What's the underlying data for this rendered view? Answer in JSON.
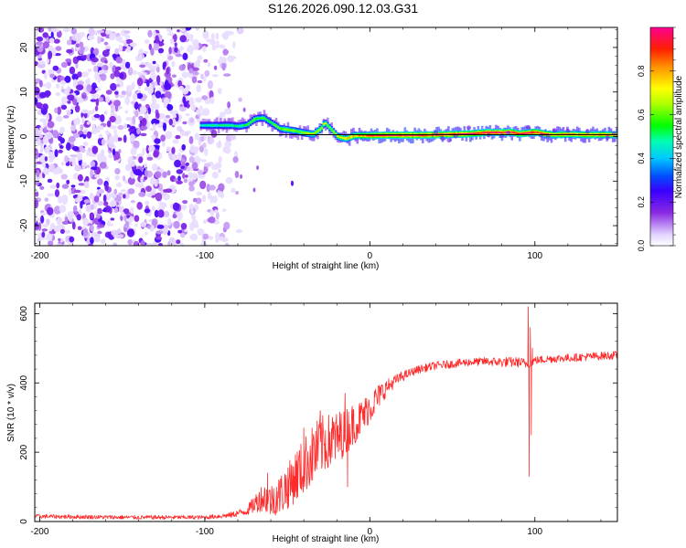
{
  "figure_title": "S126.2026.090.12.03.G31",
  "colors": {
    "line": "#ff2a2a",
    "axis": "#000000",
    "background": "#ffffff"
  },
  "chart_data": [
    {
      "type": "heatmap",
      "title": "S126.2026.090.12.03.G31",
      "xlabel": "Height of straight line (km)",
      "ylabel": "Frequency (Hz)",
      "xlim": [
        -203,
        150
      ],
      "ylim": [
        -24.5,
        24.5
      ],
      "xticks": [
        -200,
        -100,
        0,
        100
      ],
      "yticks": [
        -20,
        -10,
        0,
        10,
        20
      ],
      "x_tick_labels": [
        "-200",
        "-100",
        "0",
        "100"
      ],
      "y_tick_labels": [
        "-20",
        "-10",
        "0",
        "10",
        "20"
      ],
      "ridge": {
        "name": "dominant frequency track",
        "x": [
          -103,
          -95,
          -85,
          -80,
          -75,
          -70,
          -65,
          -60,
          -55,
          -50,
          -45,
          -40,
          -35,
          -30,
          -28,
          -25,
          -20,
          -15,
          -10,
          -5,
          0,
          10,
          20,
          30,
          40,
          50,
          60,
          70,
          80,
          85,
          90,
          95,
          100,
          105,
          110,
          120,
          130,
          140,
          150
        ],
        "y": [
          2.5,
          2.5,
          2.5,
          2.3,
          2.6,
          4.0,
          4.2,
          3.0,
          1.8,
          1.5,
          1.2,
          0.8,
          0.5,
          1.8,
          3.2,
          2.0,
          0.0,
          -0.5,
          0.2,
          0.2,
          0.2,
          0.3,
          0.3,
          0.3,
          0.4,
          0.5,
          0.6,
          0.9,
          0.9,
          1.0,
          0.6,
          0.8,
          1.0,
          0.6,
          0.4,
          0.5,
          0.4,
          0.4,
          0.4
        ],
        "amplitude": [
          0.45,
          0.5,
          0.5,
          0.5,
          0.55,
          0.6,
          0.55,
          0.55,
          0.6,
          0.65,
          0.6,
          0.65,
          0.7,
          0.65,
          0.7,
          0.6,
          0.7,
          0.75,
          0.8,
          0.85,
          0.9,
          0.95,
          0.95,
          0.95,
          0.95,
          0.95,
          0.95,
          0.95,
          0.95,
          0.95,
          0.9,
          0.95,
          0.95,
          0.9,
          0.85,
          0.85,
          0.85,
          0.85,
          0.85
        ]
      },
      "noise_region": {
        "x_range": [
          -203,
          -78
        ],
        "amplitude_range": [
          0.0,
          0.25
        ],
        "description": "scattered low-amplitude noise"
      },
      "reference_line": {
        "y": 0.4,
        "x_range": [
          -103,
          150
        ],
        "color": "#000000"
      },
      "colorbar": {
        "label": "Normalized spectral amplitude",
        "range": [
          0.0,
          1.0
        ],
        "ticks": [
          0.0,
          0.2,
          0.4,
          0.6,
          0.8
        ],
        "tick_labels": [
          "0.0",
          "0.2",
          "0.4",
          "0.6",
          "0.8"
        ],
        "colormap": [
          {
            "v": 0.0,
            "color": "#ffffff"
          },
          {
            "v": 0.05,
            "color": "#e4d4ff"
          },
          {
            "v": 0.15,
            "color": "#8a2be2"
          },
          {
            "v": 0.25,
            "color": "#3a00ff"
          },
          {
            "v": 0.32,
            "color": "#0050ff"
          },
          {
            "v": 0.4,
            "color": "#00c8ff"
          },
          {
            "v": 0.48,
            "color": "#00ffb0"
          },
          {
            "v": 0.55,
            "color": "#00ff00"
          },
          {
            "v": 0.65,
            "color": "#b0ff00"
          },
          {
            "v": 0.72,
            "color": "#ffff00"
          },
          {
            "v": 0.82,
            "color": "#ff9000"
          },
          {
            "v": 0.9,
            "color": "#ff2000"
          },
          {
            "v": 1.0,
            "color": "#ff0090"
          }
        ]
      }
    },
    {
      "type": "line",
      "title": "",
      "xlabel": "Height of straight line (km)",
      "ylabel": "SNR (10 * v/v)",
      "xlim": [
        -203,
        150
      ],
      "ylim": [
        0,
        630
      ],
      "xticks": [
        -200,
        -100,
        0,
        100
      ],
      "yticks": [
        0,
        200,
        400,
        600
      ],
      "x_tick_labels": [
        "-200",
        "-100",
        "0",
        "100"
      ],
      "y_tick_labels": [
        "0",
        "200",
        "400",
        "600"
      ],
      "series": [
        {
          "name": "SNR",
          "color": "#ff2a2a",
          "trend_x": [
            -203,
            -150,
            -100,
            -85,
            -75,
            -70,
            -65,
            -60,
            -55,
            -50,
            -45,
            -40,
            -35,
            -30,
            -25,
            -20,
            -15,
            -10,
            -5,
            0,
            5,
            10,
            15,
            20,
            25,
            30,
            40,
            50,
            60,
            70,
            80,
            90,
            95,
            100,
            110,
            120,
            130,
            140,
            150
          ],
          "trend_y": [
            15,
            12,
            12,
            18,
            30,
            50,
            70,
            60,
            75,
            100,
            130,
            160,
            190,
            220,
            230,
            240,
            260,
            280,
            300,
            330,
            360,
            385,
            405,
            420,
            430,
            440,
            450,
            455,
            460,
            462,
            460,
            460,
            455,
            465,
            470,
            472,
            475,
            478,
            480
          ],
          "noise_amplitude": [
            6,
            6,
            6,
            8,
            12,
            25,
            40,
            45,
            55,
            65,
            75,
            80,
            85,
            85,
            80,
            75,
            70,
            60,
            50,
            45,
            35,
            25,
            18,
            15,
            12,
            12,
            12,
            12,
            12,
            12,
            15,
            15,
            15,
            12,
            12,
            12,
            12,
            12,
            12
          ],
          "spikes": [
            {
              "x": 96.0,
              "y": 620
            },
            {
              "x": 96.6,
              "y": 130
            },
            {
              "x": 97.2,
              "y": 560
            },
            {
              "x": 97.8,
              "y": 250
            },
            {
              "x": 98.5,
              "y": 500
            },
            {
              "x": -62.0,
              "y": 140
            },
            {
              "x": -40.0,
              "y": 270
            },
            {
              "x": -30.0,
              "y": 320
            },
            {
              "x": -15.0,
              "y": 370
            },
            {
              "x": -13.5,
              "y": 100
            }
          ]
        }
      ]
    }
  ]
}
